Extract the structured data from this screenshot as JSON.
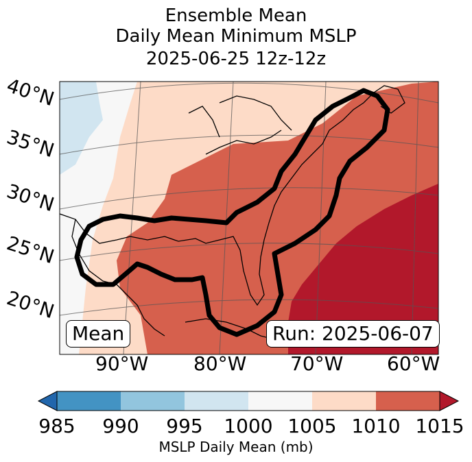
{
  "title": {
    "line1": "Ensemble Mean",
    "line2": "Daily Mean Minimum MSLP",
    "line3": "2025-06-25 12z-12z"
  },
  "latitude_labels": [
    "40°N",
    "35°N",
    "30°N",
    "25°N",
    "20°N"
  ],
  "longitude_labels": [
    "90°W",
    "80°W",
    "70°W",
    "60°W"
  ],
  "mean_box": "Mean",
  "run_box": "Run: 2025-06-07",
  "colorbar": {
    "ticks": [
      "985",
      "990",
      "995",
      "1000",
      "1005",
      "1010",
      "1015"
    ],
    "label": "MSLP Daily Mean (mb)",
    "colors": [
      "#2166ac",
      "#4393c3",
      "#92c5de",
      "#d1e5f0",
      "#f7f7f7",
      "#fddbc7",
      "#d6604d",
      "#b2182b"
    ]
  }
}
